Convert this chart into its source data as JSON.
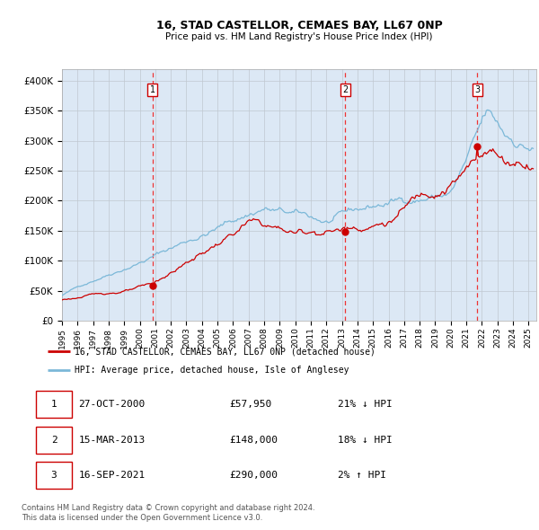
{
  "title": "16, STAD CASTELLOR, CEMAES BAY, LL67 0NP",
  "subtitle": "Price paid vs. HM Land Registry's House Price Index (HPI)",
  "legend_line1": "16, STAD CASTELLOR, CEMAES BAY, LL67 0NP (detached house)",
  "legend_line2": "HPI: Average price, detached house, Isle of Anglesey",
  "footer1": "Contains HM Land Registry data © Crown copyright and database right 2024.",
  "footer2": "This data is licensed under the Open Government Licence v3.0.",
  "transactions": [
    {
      "num": 1,
      "date": "27-OCT-2000",
      "price": 57950,
      "pct": "21%",
      "dir": "↓"
    },
    {
      "num": 2,
      "date": "15-MAR-2013",
      "price": 148000,
      "pct": "18%",
      "dir": "↓"
    },
    {
      "num": 3,
      "date": "16-SEP-2021",
      "price": 290000,
      "pct": "2%",
      "dir": "↑"
    }
  ],
  "transaction_dates_decimal": [
    2000.82,
    2013.21,
    2021.71
  ],
  "transaction_prices": [
    57950,
    148000,
    290000
  ],
  "hpi_color": "#7bb8d8",
  "price_color": "#cc0000",
  "bg_color": "#dce8f5",
  "grid_color": "#c0c8d0",
  "dashed_line_color": "#ee3333",
  "ylim": [
    0,
    420000
  ],
  "xlim_start": 1995.0,
  "xlim_end": 2025.5,
  "yticks": [
    0,
    50000,
    100000,
    150000,
    200000,
    250000,
    300000,
    350000,
    400000
  ]
}
